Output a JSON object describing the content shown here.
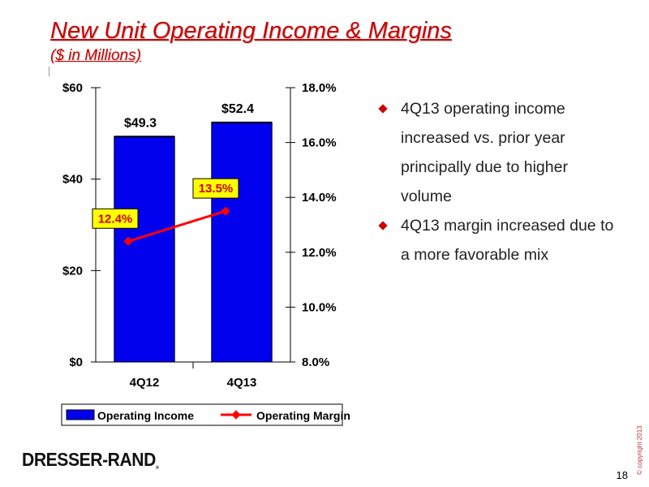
{
  "slide": {
    "title": "New Unit Operating Income & Margins",
    "subtitle": "($ in Millions)",
    "bullets": [
      "4Q13 operating income increased vs. prior year principally due to higher volume",
      "4Q13 margin increased due to a more favorable mix"
    ],
    "copyright": "© copyright 2013",
    "page_number": "18",
    "logo_text": "DRESSER-RAND",
    "logo_mark": "®"
  },
  "colors": {
    "title": "#cc0000",
    "bar": "#0000ee",
    "line": "#ff0000",
    "margin_label_bg": "#ffff00",
    "bullet": "#cc0000"
  },
  "chart_data": {
    "type": "bar",
    "categories": [
      "4Q12",
      "4Q13"
    ],
    "series": [
      {
        "name": "Operating Income",
        "type": "bar",
        "axis": "left",
        "values": [
          49.3,
          52.4
        ],
        "labels": [
          "$49.3",
          "$52.4"
        ]
      },
      {
        "name": "Operating Margin",
        "type": "line",
        "axis": "right",
        "values": [
          12.4,
          13.5
        ],
        "labels": [
          "12.4%",
          "13.5%"
        ]
      }
    ],
    "y_left": {
      "min": 0,
      "max": 60,
      "ticks": [
        0,
        20,
        40,
        60
      ],
      "tick_labels": [
        "$0",
        "$20",
        "$40",
        "$60"
      ]
    },
    "y_right": {
      "min": 8,
      "max": 18,
      "ticks": [
        8,
        10,
        12,
        14,
        16,
        18
      ],
      "tick_labels": [
        "8.0%",
        "10.0%",
        "12.0%",
        "14.0%",
        "16.0%",
        "18.0%"
      ]
    },
    "grid": false,
    "legend_position": "bottom"
  }
}
